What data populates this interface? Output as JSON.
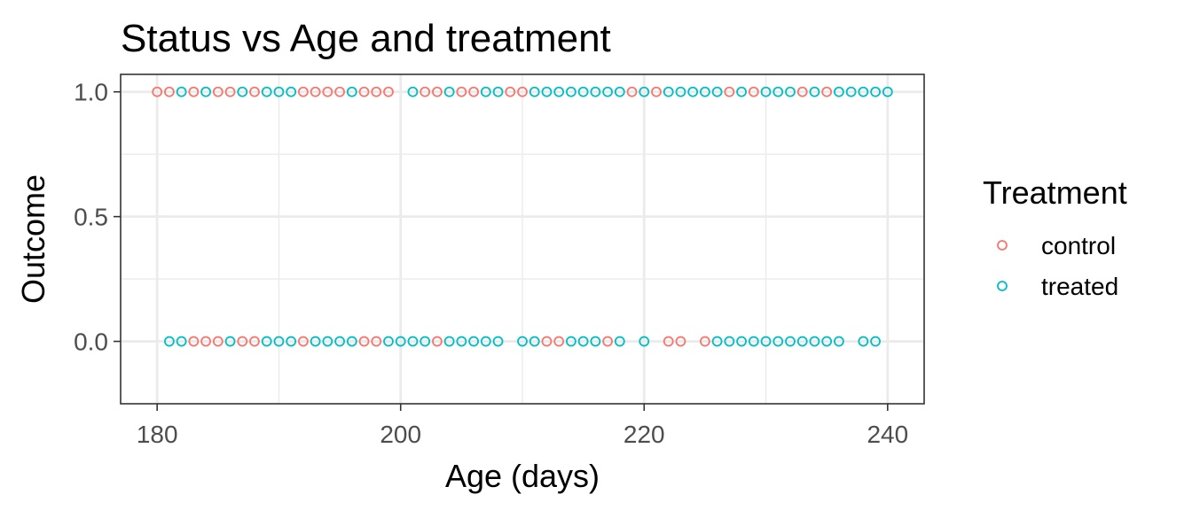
{
  "chart_data": {
    "type": "scatter",
    "title": "Status vs Age and treatment",
    "xlabel": "Age (days)",
    "ylabel": "Outcome",
    "xlim": [
      177,
      243
    ],
    "ylim": [
      -0.25,
      1.07
    ],
    "x_ticks": [
      180,
      200,
      220,
      240
    ],
    "x_tick_labels": [
      "180",
      "200",
      "220",
      "240"
    ],
    "y_ticks": [
      0.0,
      0.5,
      1.0
    ],
    "y_tick_labels": [
      "0.0",
      "0.5",
      "1.0"
    ],
    "grid": true,
    "legend": {
      "title": "Treatment",
      "position": "right",
      "entries": [
        "control",
        "treated"
      ]
    },
    "series": [
      {
        "name": "control",
        "color": "#F8766D",
        "points": [
          [
            180,
            1
          ],
          [
            181,
            1
          ],
          [
            183,
            1
          ],
          [
            185,
            1
          ],
          [
            186,
            1
          ],
          [
            188,
            1
          ],
          [
            192,
            1
          ],
          [
            193,
            1
          ],
          [
            194,
            1
          ],
          [
            195,
            1
          ],
          [
            197,
            1
          ],
          [
            198,
            1
          ],
          [
            199,
            1
          ],
          [
            202,
            1
          ],
          [
            203,
            1
          ],
          [
            205,
            1
          ],
          [
            206,
            1
          ],
          [
            209,
            1
          ],
          [
            210,
            1
          ],
          [
            219,
            1
          ],
          [
            221,
            1
          ],
          [
            227,
            1
          ],
          [
            229,
            1
          ],
          [
            233,
            1
          ],
          [
            235,
            1
          ],
          [
            183,
            0
          ],
          [
            184,
            0
          ],
          [
            185,
            0
          ],
          [
            187,
            0
          ],
          [
            188,
            0
          ],
          [
            192,
            0
          ],
          [
            197,
            0
          ],
          [
            198,
            0
          ],
          [
            203,
            0
          ],
          [
            212,
            0
          ],
          [
            213,
            0
          ],
          [
            217,
            0
          ],
          [
            222,
            0
          ],
          [
            223,
            0
          ],
          [
            225,
            0
          ]
        ]
      },
      {
        "name": "treated",
        "color": "#00BFC4",
        "points": [
          [
            182,
            1
          ],
          [
            184,
            1
          ],
          [
            187,
            1
          ],
          [
            189,
            1
          ],
          [
            190,
            1
          ],
          [
            191,
            1
          ],
          [
            196,
            1
          ],
          [
            201,
            1
          ],
          [
            204,
            1
          ],
          [
            207,
            1
          ],
          [
            208,
            1
          ],
          [
            211,
            1
          ],
          [
            212,
            1
          ],
          [
            213,
            1
          ],
          [
            214,
            1
          ],
          [
            215,
            1
          ],
          [
            216,
            1
          ],
          [
            217,
            1
          ],
          [
            218,
            1
          ],
          [
            220,
            1
          ],
          [
            222,
            1
          ],
          [
            223,
            1
          ],
          [
            224,
            1
          ],
          [
            225,
            1
          ],
          [
            226,
            1
          ],
          [
            228,
            1
          ],
          [
            230,
            1
          ],
          [
            231,
            1
          ],
          [
            232,
            1
          ],
          [
            234,
            1
          ],
          [
            236,
            1
          ],
          [
            237,
            1
          ],
          [
            238,
            1
          ],
          [
            239,
            1
          ],
          [
            240,
            1
          ],
          [
            181,
            0
          ],
          [
            182,
            0
          ],
          [
            186,
            0
          ],
          [
            189,
            0
          ],
          [
            190,
            0
          ],
          [
            191,
            0
          ],
          [
            193,
            0
          ],
          [
            194,
            0
          ],
          [
            195,
            0
          ],
          [
            196,
            0
          ],
          [
            199,
            0
          ],
          [
            200,
            0
          ],
          [
            201,
            0
          ],
          [
            202,
            0
          ],
          [
            204,
            0
          ],
          [
            205,
            0
          ],
          [
            206,
            0
          ],
          [
            207,
            0
          ],
          [
            208,
            0
          ],
          [
            210,
            0
          ],
          [
            211,
            0
          ],
          [
            214,
            0
          ],
          [
            215,
            0
          ],
          [
            216,
            0
          ],
          [
            218,
            0
          ],
          [
            220,
            0
          ],
          [
            226,
            0
          ],
          [
            227,
            0
          ],
          [
            228,
            0
          ],
          [
            229,
            0
          ],
          [
            230,
            0
          ],
          [
            231,
            0
          ],
          [
            232,
            0
          ],
          [
            233,
            0
          ],
          [
            234,
            0
          ],
          [
            235,
            0
          ],
          [
            236,
            0
          ],
          [
            238,
            0
          ],
          [
            239,
            0
          ]
        ]
      }
    ]
  }
}
